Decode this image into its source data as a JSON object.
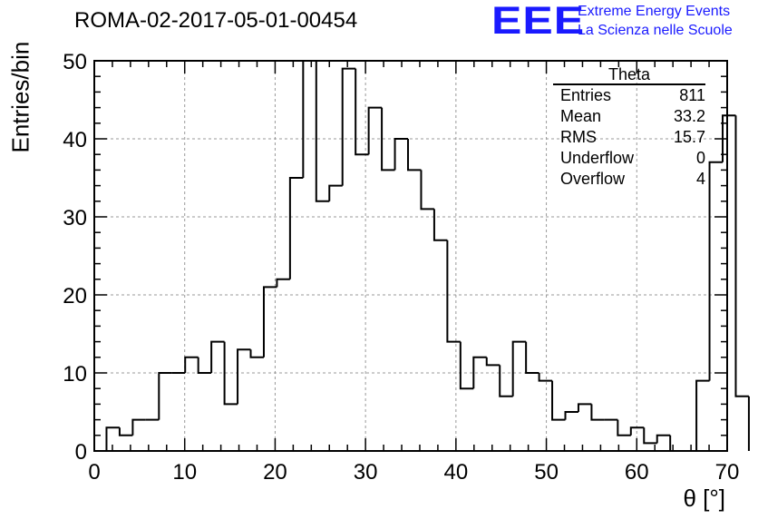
{
  "chart_data": {
    "type": "bar",
    "title": "ROMA-02-2017-05-01-00454",
    "xlabel": "θ [°]",
    "ylabel": "Entries/bin",
    "xlim": [
      0,
      70
    ],
    "ylim": [
      0,
      50
    ],
    "x_ticks": [
      0,
      10,
      20,
      30,
      40,
      50,
      60,
      70
    ],
    "y_ticks": [
      0,
      10,
      20,
      30,
      40,
      50
    ],
    "grid": true,
    "bin_edges_start": 1.35,
    "bin_width": 1.45,
    "values": [
      3,
      2,
      4,
      4,
      10,
      10,
      12,
      10,
      14,
      6,
      13,
      12,
      21,
      22,
      35,
      50,
      32,
      34,
      49,
      38,
      44,
      36,
      40,
      36,
      31,
      27,
      14,
      8,
      12,
      11,
      7,
      14,
      10,
      9,
      4,
      5,
      6,
      4,
      4,
      2,
      3,
      1,
      2,
      0,
      0,
      9,
      37,
      43,
      7
    ],
    "stats_box": {
      "title": "Theta",
      "rows": [
        {
          "label": "Entries",
          "value": "811"
        },
        {
          "label": "Mean",
          "value": "33.2"
        },
        {
          "label": "RMS",
          "value": "15.7"
        },
        {
          "label": "Underflow",
          "value": "0"
        },
        {
          "label": "Overflow",
          "value": "4"
        }
      ]
    },
    "logo": {
      "mark": "EEE",
      "line1": "Extreme Energy Events",
      "line2": "La Scienza nelle Scuole"
    }
  }
}
